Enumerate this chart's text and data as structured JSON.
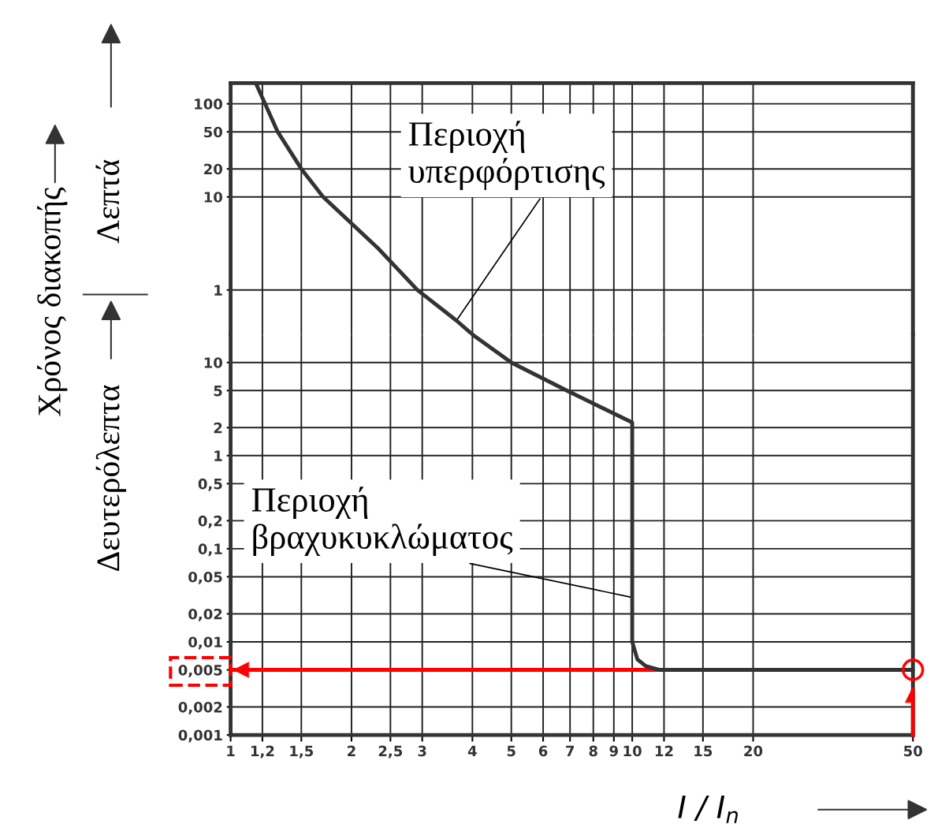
{
  "chart_data": [
    {
      "type": "line",
      "ylabel": "Χρόνος διακοπής",
      "log": "xy",
      "grid": true,
      "tick_labels": "y",
      "xlim": [
        1,
        50
      ],
      "ylim": [
        0.333,
        167
      ],
      "xticks": [
        1,
        {
          "value": 1.2,
          "label": null
        },
        {
          "value": 1.5,
          "label": null
        },
        2,
        {
          "value": 2.5,
          "label": null
        },
        3,
        4,
        5,
        6,
        7,
        8,
        9,
        10,
        12,
        15,
        20,
        50
      ],
      "yticks": [
        100,
        50,
        20,
        10,
        1
      ],
      "series": [
        {
          "color": "#333333",
          "x": [
            1.155,
            1.31,
            1.5,
            1.7,
            2.33,
            2.92,
            3.65,
            4.0
          ],
          "values": [
            167,
            50,
            20,
            10,
            2.8,
            1,
            0.47,
            0.333
          ]
        }
      ],
      "annotations": [
        {
          "text": "Περιοχή\nυπερφόρτισης",
          "x": 3.65,
          "y": 0.47
        },
        "Λεπτά"
      ]
    },
    {
      "type": "line",
      "xlabel": "I / I$_{n}$",
      "log": "xy",
      "grid": true,
      "xlim": [
        1,
        50
      ],
      "ylim": [
        0.001,
        20
      ],
      "xticks": [
        1,
        {
          "value": 1.2,
          "label": "1,2"
        },
        {
          "value": 1.5,
          "label": "1,5"
        },
        2,
        {
          "value": 2.5,
          "label": "2,5"
        },
        3,
        4,
        5,
        6,
        7,
        8,
        9,
        10,
        12,
        15,
        20,
        50
      ],
      "yticks": [
        10,
        5,
        2,
        1,
        {
          "value": 0.5,
          "label": "0,5"
        },
        {
          "value": 0.2,
          "label": "0,2"
        },
        {
          "value": 0.1,
          "label": "0,1"
        },
        {
          "value": 0.05,
          "label": "0,05"
        },
        {
          "value": 0.02,
          "label": "0,02"
        },
        {
          "value": 0.01,
          "label": "0,01"
        },
        {
          "value": 0.005,
          "label": "0,005"
        },
        {
          "value": 0.002,
          "label": "0,002"
        },
        {
          "value": 0.001,
          "label": "0,001"
        }
      ],
      "series": [
        {
          "color": "#333333",
          "x": [
            4.0,
            5.0,
            6.87,
            10,
            10,
            10.3,
            10.8,
            11.7,
            50
          ],
          "values": [
            20,
            10,
            5,
            2.27,
            0.01,
            0.0065,
            0.0055,
            0.005,
            0.005
          ]
        },
        {
          "type": "scatter",
          "marker": "circle",
          "color": "#ff0000",
          "x": [
            50
          ],
          "values": [
            0.005
          ]
        }
      ],
      "ref_lines": [
        {
          "axis": "y",
          "value": 0.005,
          "color": "#ff0000"
        },
        {
          "axis": "x",
          "value": 50,
          "color": "#ff0000"
        }
      ],
      "annotations": [
        {
          "text": "Περιοχή\nβραχυκυκλώματος",
          "x": 10,
          "y": 0.03
        },
        "Δευτερόλεπτα"
      ]
    }
  ]
}
